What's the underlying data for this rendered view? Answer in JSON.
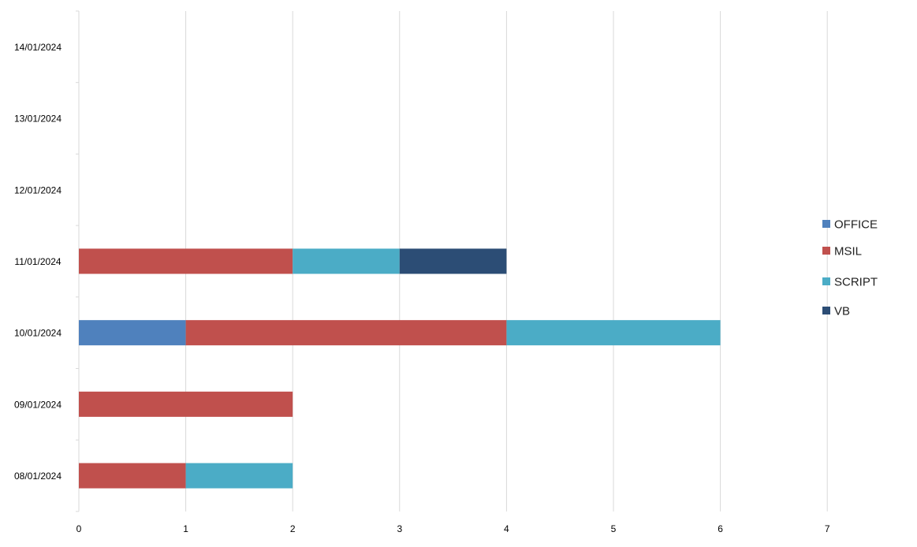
{
  "chart_data": {
    "type": "bar",
    "orientation": "horizontal",
    "stacked": true,
    "categories": [
      "08/01/2024",
      "09/01/2024",
      "10/01/2024",
      "11/01/2024",
      "12/01/2024",
      "13/01/2024",
      "14/01/2024"
    ],
    "series": [
      {
        "name": "OFFICE",
        "color": "#4F81BD",
        "values": [
          0,
          0,
          1,
          0,
          0,
          0,
          0
        ]
      },
      {
        "name": "MSIL",
        "color": "#C0504D",
        "values": [
          1,
          2,
          3,
          2,
          0,
          0,
          0
        ]
      },
      {
        "name": "SCRIPT",
        "color": "#4BACC6",
        "values": [
          1,
          0,
          2,
          1,
          0,
          0,
          0
        ]
      },
      {
        "name": "VB",
        "color": "#2C4D75",
        "values": [
          0,
          0,
          0,
          1,
          0,
          0,
          0
        ]
      }
    ],
    "xlim": [
      0,
      7
    ],
    "x_ticks": [
      0,
      1,
      2,
      3,
      4,
      5,
      6,
      7
    ],
    "title": "",
    "xlabel": "",
    "ylabel": "",
    "grid": "vertical",
    "legend_position": "right"
  }
}
